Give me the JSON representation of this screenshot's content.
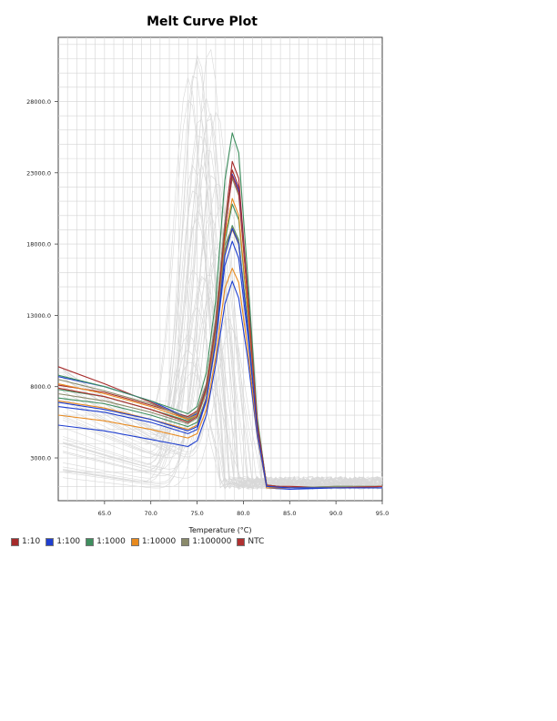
{
  "chart_data": {
    "type": "line",
    "title": "Melt Curve Plot",
    "xlabel": "Temperature (°C)",
    "ylabel": "",
    "xlim": [
      60.0,
      95.0
    ],
    "ylim": [
      0,
      32500
    ],
    "x_ticks": [
      65.0,
      70.0,
      75.0,
      80.0,
      85.0,
      90.0,
      95.0
    ],
    "x_tick_labels": [
      "65.0",
      "70.0",
      "75.0",
      "80.0",
      "85.0",
      "90.0",
      "95.0"
    ],
    "y_ticks": [
      3000,
      8000,
      13000,
      18000,
      23000,
      28000
    ],
    "y_tick_labels": [
      "3000.0",
      "8000.0",
      "13000.0",
      "18000.0",
      "23000.0",
      "28000.0"
    ],
    "grid": true,
    "legend_position": "bottom-left",
    "legend": [
      {
        "label": "1:10",
        "color": "#a52a2a"
      },
      {
        "label": "1:100",
        "color": "#1f3fd0"
      },
      {
        "label": "1:1000",
        "color": "#3f8f5f"
      },
      {
        "label": "1:10000",
        "color": "#e88a1e"
      },
      {
        "label": "1:100000",
        "color": "#8a8a6a"
      },
      {
        "label": "NTC",
        "color": "#b03030"
      }
    ],
    "background_curves_color": "#d8d8d8",
    "series": [
      {
        "color": "#a52a2a",
        "x": [
          60,
          65,
          70,
          74,
          75,
          76,
          77,
          78,
          78.8,
          79.5,
          80.5,
          81.5,
          82.5,
          85,
          90,
          95
        ],
        "y": [
          8100,
          7600,
          6700,
          5900,
          6300,
          8200,
          12600,
          19500,
          23800,
          22600,
          14500,
          5600,
          1100,
          900,
          900,
          1000
        ]
      },
      {
        "color": "#a52a2a",
        "x": [
          60,
          65,
          70,
          74,
          75,
          76,
          77,
          78,
          78.8,
          79.5,
          80.5,
          81.5,
          82.5,
          85,
          90,
          95
        ],
        "y": [
          9400,
          8200,
          6900,
          5700,
          6000,
          7800,
          12000,
          18800,
          23200,
          22000,
          14000,
          5400,
          1000,
          1000,
          900,
          1000
        ]
      },
      {
        "color": "#1f3fd0",
        "x": [
          60,
          65,
          70,
          74,
          75,
          76,
          77,
          78,
          78.8,
          79.5,
          80.5,
          81.5,
          82.5,
          85,
          90,
          95
        ],
        "y": [
          5300,
          4900,
          4300,
          3800,
          4200,
          6000,
          9500,
          13800,
          15400,
          14200,
          9800,
          4500,
          900,
          800,
          900,
          900
        ]
      },
      {
        "color": "#1f3fd0",
        "x": [
          60,
          65,
          70,
          74,
          75,
          76,
          77,
          78,
          78.8,
          79.5,
          80.5,
          81.5,
          82.5,
          85,
          90,
          95
        ],
        "y": [
          6600,
          6200,
          5500,
          4700,
          5000,
          7000,
          11000,
          16500,
          18200,
          17000,
          11500,
          5000,
          1000,
          900,
          900,
          1000
        ]
      },
      {
        "color": "#1f3fd0",
        "x": [
          60,
          65,
          70,
          74,
          75,
          76,
          77,
          78,
          78.8,
          79.5,
          80.5,
          81.5,
          82.5,
          85,
          90,
          95
        ],
        "y": [
          8700,
          8000,
          7000,
          5800,
          6100,
          8000,
          12300,
          19000,
          22900,
          21800,
          14200,
          5500,
          1100,
          900,
          900,
          1000
        ]
      },
      {
        "color": "#3f8f5f",
        "x": [
          60,
          65,
          70,
          74,
          75,
          76,
          77,
          78,
          78.8,
          79.5,
          80.5,
          81.5,
          82.5,
          85,
          90,
          95
        ],
        "y": [
          8800,
          8000,
          7000,
          6100,
          6600,
          9000,
          14000,
          22500,
          25800,
          24400,
          15500,
          5800,
          1100,
          900,
          900,
          1000
        ]
      },
      {
        "color": "#3f8f5f",
        "x": [
          60,
          65,
          70,
          74,
          75,
          76,
          77,
          78,
          78.8,
          79.5,
          80.5,
          81.5,
          82.5,
          85,
          90,
          95
        ],
        "y": [
          7800,
          7300,
          6400,
          5600,
          6000,
          7900,
          12000,
          18200,
          20800,
          19700,
          13000,
          5200,
          1000,
          900,
          900,
          1000
        ]
      },
      {
        "color": "#3f8f5f",
        "x": [
          60,
          65,
          70,
          74,
          75,
          76,
          77,
          78,
          78.8,
          79.5,
          80.5,
          81.5,
          82.5,
          85,
          90,
          95
        ],
        "y": [
          7200,
          6800,
          6000,
          5200,
          5500,
          7200,
          11200,
          17500,
          19300,
          18300,
          12200,
          5000,
          1000,
          900,
          1000,
          1000
        ]
      },
      {
        "color": "#e88a1e",
        "x": [
          60,
          65,
          70,
          74,
          75,
          76,
          77,
          78,
          78.8,
          79.5,
          80.5,
          81.5,
          82.5,
          85,
          90,
          95
        ],
        "y": [
          6000,
          5600,
          5000,
          4400,
          4700,
          6400,
          10000,
          14900,
          16300,
          15300,
          10500,
          4700,
          900,
          900,
          900,
          1000
        ]
      },
      {
        "color": "#e88a1e",
        "x": [
          60,
          65,
          70,
          74,
          75,
          76,
          77,
          78,
          78.8,
          79.5,
          80.5,
          81.5,
          82.5,
          85,
          90,
          95
        ],
        "y": [
          7000,
          6500,
          5700,
          5000,
          5300,
          7200,
          11500,
          18500,
          21200,
          20000,
          13300,
          5200,
          1000,
          900,
          900,
          1000
        ]
      },
      {
        "color": "#e88a1e",
        "x": [
          60,
          65,
          70,
          74,
          75,
          76,
          77,
          78,
          78.8,
          79.5,
          80.5,
          81.5,
          82.5,
          85,
          90,
          95
        ],
        "y": [
          8200,
          7500,
          6600,
          5700,
          6000,
          7800,
          11800,
          17400,
          19000,
          18000,
          12300,
          5000,
          1000,
          900,
          900,
          1000
        ]
      },
      {
        "color": "#8a8a6a",
        "x": [
          60,
          65,
          70,
          74,
          75,
          76,
          77,
          78,
          78.8,
          79.5,
          80.5,
          81.5,
          82.5,
          85,
          90,
          95
        ],
        "y": [
          8500,
          7700,
          6800,
          5800,
          6200,
          8200,
          12700,
          19600,
          22600,
          21400,
          14100,
          5500,
          1100,
          900,
          900,
          1000
        ]
      },
      {
        "color": "#8a8a6a",
        "x": [
          60,
          65,
          70,
          74,
          75,
          76,
          77,
          78,
          78.8,
          79.5,
          80.5,
          81.5,
          82.5,
          85,
          90,
          95
        ],
        "y": [
          7500,
          7000,
          6200,
          5400,
          5800,
          7600,
          11800,
          17900,
          19200,
          18200,
          12300,
          5000,
          1000,
          900,
          1000,
          1000
        ]
      },
      {
        "color": "#b03030",
        "x": [
          60,
          65,
          70,
          74,
          75,
          76,
          77,
          78,
          78.8,
          79.5,
          80.5,
          81.5,
          82.5,
          85,
          90,
          95
        ],
        "y": [
          7900,
          7300,
          6400,
          5500,
          5900,
          7900,
          12200,
          18900,
          22800,
          21600,
          14000,
          5400,
          1100,
          900,
          900,
          1000
        ]
      },
      {
        "color": "#1f3fd0",
        "x": [
          60,
          65,
          70,
          74,
          75,
          76,
          77,
          78,
          78.8,
          79.5,
          80.5,
          81.5,
          82.5,
          85,
          90,
          95
        ],
        "y": [
          6900,
          6400,
          5700,
          4900,
          5200,
          7100,
          11100,
          17200,
          19100,
          18000,
          12000,
          4900,
          1000,
          900,
          900,
          900
        ]
      }
    ]
  }
}
